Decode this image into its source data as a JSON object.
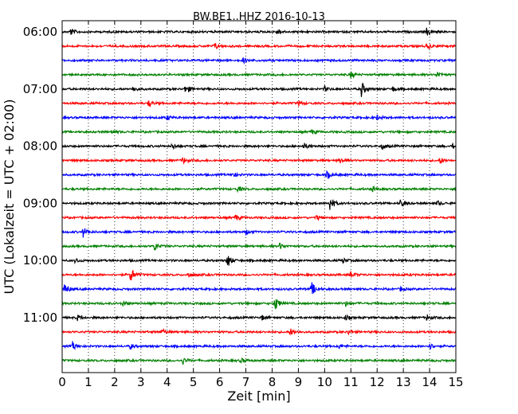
{
  "chart_data": {
    "type": "line",
    "title": "BW.BE1..HHZ 2016-10-13",
    "xlabel": "Zeit  [min]",
    "ylabel": "UTC (Lokalzeit = UTC + 02:00)",
    "xlim": [
      0,
      15
    ],
    "x_ticks": [
      "0",
      "1",
      "2",
      "3",
      "4",
      "5",
      "6",
      "7",
      "8",
      "9",
      "10",
      "11",
      "12",
      "13",
      "14",
      "15"
    ],
    "y_tick_labels": [
      "06:00",
      "07:00",
      "08:00",
      "09:00",
      "10:00",
      "11:00"
    ],
    "grid": "vertical dotted",
    "colors": [
      "#000000",
      "#ff0000",
      "#0000ff",
      "#008000"
    ],
    "traces": [
      {
        "start": "06:00",
        "color": "#000000",
        "events": [
          [
            0.3,
            0.5
          ],
          [
            8.2,
            0.4
          ],
          [
            13.9,
            0.6
          ]
        ]
      },
      {
        "start": "06:15",
        "color": "#ff0000",
        "events": [
          [
            5.8,
            0.4
          ],
          [
            13.9,
            0.4
          ]
        ]
      },
      {
        "start": "06:30",
        "color": "#0000ff",
        "events": [
          [
            6.9,
            0.3
          ]
        ]
      },
      {
        "start": "06:45",
        "color": "#008000",
        "events": [
          [
            11.0,
            0.4
          ],
          [
            14.3,
            0.4
          ]
        ]
      },
      {
        "start": "07:00",
        "color": "#000000",
        "events": [
          [
            2.7,
            0.3
          ],
          [
            4.7,
            0.6
          ],
          [
            10.0,
            0.3
          ],
          [
            11.4,
            1.0
          ],
          [
            12.6,
            0.3
          ]
        ]
      },
      {
        "start": "07:15",
        "color": "#ff0000",
        "events": [
          [
            3.3,
            0.4
          ],
          [
            9.0,
            0.3
          ]
        ]
      },
      {
        "start": "07:30",
        "color": "#0000ff",
        "events": [
          [
            4.0,
            0.3
          ],
          [
            12.0,
            0.3
          ]
        ]
      },
      {
        "start": "07:45",
        "color": "#008000",
        "events": [
          [
            1.9,
            0.3
          ],
          [
            9.5,
            0.3
          ]
        ]
      },
      {
        "start": "08:00",
        "color": "#000000",
        "events": [
          [
            4.2,
            0.4
          ],
          [
            9.2,
            0.4
          ],
          [
            12.2,
            0.4
          ],
          [
            14.9,
            0.3
          ]
        ]
      },
      {
        "start": "08:15",
        "color": "#ff0000",
        "events": [
          [
            4.6,
            0.4
          ],
          [
            10.6,
            0.4
          ],
          [
            14.4,
            0.4
          ]
        ]
      },
      {
        "start": "08:30",
        "color": "#0000ff",
        "events": [
          [
            6.5,
            0.3
          ],
          [
            10.1,
            0.5
          ]
        ]
      },
      {
        "start": "08:45",
        "color": "#008000",
        "events": [
          [
            6.7,
            0.3
          ],
          [
            11.8,
            0.3
          ]
        ]
      },
      {
        "start": "09:00",
        "color": "#000000",
        "events": [
          [
            10.2,
            1.0
          ],
          [
            12.9,
            0.6
          ],
          [
            14.3,
            0.3
          ]
        ]
      },
      {
        "start": "09:15",
        "color": "#ff0000",
        "events": [
          [
            6.6,
            0.4
          ],
          [
            9.7,
            0.3
          ]
        ]
      },
      {
        "start": "09:30",
        "color": "#0000ff",
        "events": [
          [
            0.8,
            0.6
          ],
          [
            7.0,
            0.3
          ]
        ]
      },
      {
        "start": "09:45",
        "color": "#008000",
        "events": [
          [
            3.5,
            0.7
          ],
          [
            8.3,
            0.4
          ]
        ]
      },
      {
        "start": "10:00",
        "color": "#000000",
        "events": [
          [
            0.5,
            0.3
          ],
          [
            6.3,
            0.9
          ],
          [
            10.7,
            0.3
          ]
        ]
      },
      {
        "start": "10:15",
        "color": "#ff0000",
        "events": [
          [
            2.6,
            1.0
          ],
          [
            4.8,
            0.3
          ],
          [
            11.0,
            0.4
          ],
          [
            15.0,
            0.3
          ]
        ]
      },
      {
        "start": "10:30",
        "color": "#0000ff",
        "events": [
          [
            0.1,
            0.7
          ],
          [
            9.5,
            0.9
          ],
          [
            12.9,
            0.3
          ]
        ]
      },
      {
        "start": "10:45",
        "color": "#008000",
        "events": [
          [
            2.3,
            0.4
          ],
          [
            8.1,
            1.0
          ],
          [
            10.8,
            0.3
          ]
        ]
      },
      {
        "start": "11:00",
        "color": "#000000",
        "events": [
          [
            0.6,
            0.4
          ],
          [
            7.6,
            0.3
          ],
          [
            10.8,
            0.3
          ],
          [
            13.9,
            0.4
          ]
        ]
      },
      {
        "start": "11:15",
        "color": "#ff0000",
        "events": [
          [
            3.8,
            0.4
          ],
          [
            8.7,
            0.4
          ],
          [
            10.9,
            0.3
          ]
        ]
      },
      {
        "start": "11:30",
        "color": "#0000ff",
        "events": [
          [
            0.4,
            0.5
          ],
          [
            2.6,
            0.3
          ],
          [
            10.5,
            0.3
          ],
          [
            14.0,
            0.4
          ]
        ]
      },
      {
        "start": "11:45",
        "color": "#008000",
        "events": [
          [
            4.6,
            0.4
          ],
          [
            6.8,
            0.3
          ]
        ]
      }
    ]
  }
}
